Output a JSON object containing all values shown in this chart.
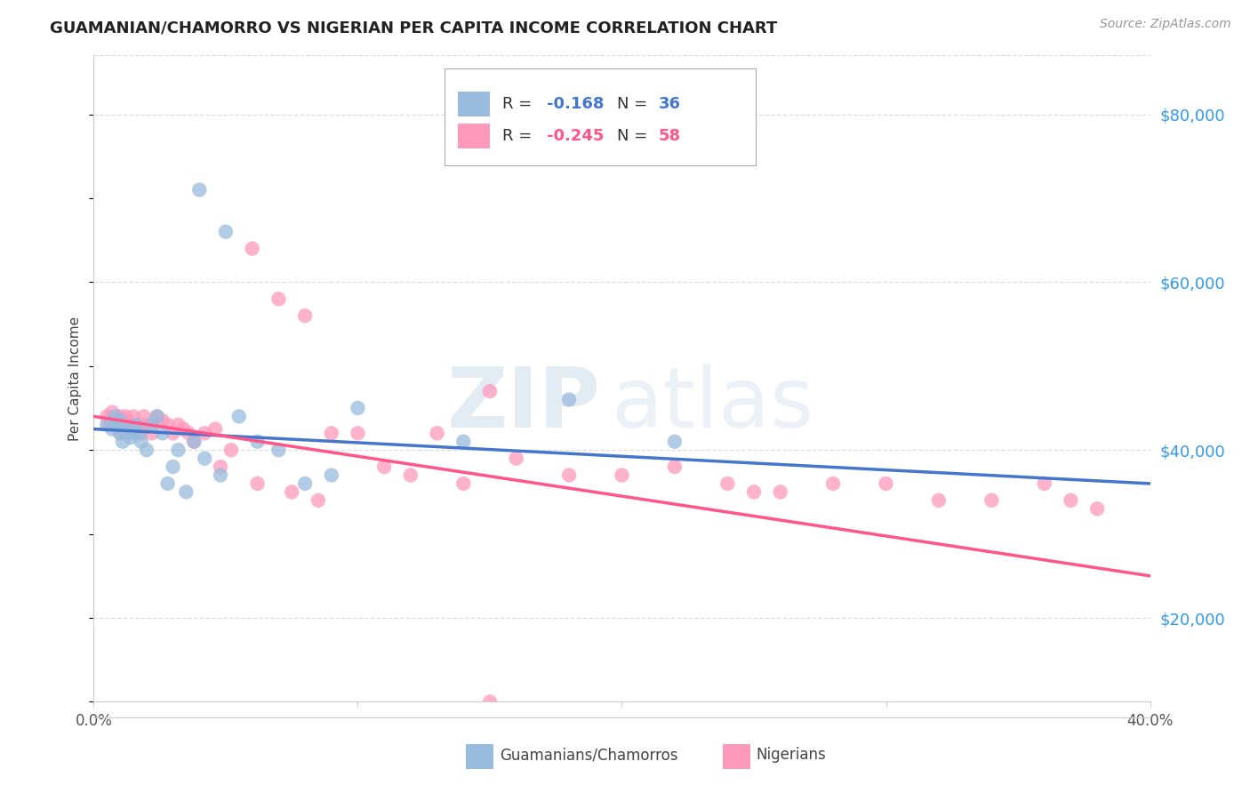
{
  "title": "GUAMANIAN/CHAMORRO VS NIGERIAN PER CAPITA INCOME CORRELATION CHART",
  "source": "Source: ZipAtlas.com",
  "ylabel": "Per Capita Income",
  "xlim": [
    0.0,
    0.4
  ],
  "ylim": [
    10000,
    87000
  ],
  "yticks": [
    20000,
    40000,
    60000,
    80000
  ],
  "ytick_labels": [
    "$20,000",
    "$40,000",
    "$60,000",
    "$80,000"
  ],
  "blue_color": "#99BBDD",
  "pink_color": "#FF99BB",
  "blue_line_color": "#4477CC",
  "pink_line_color": "#FF5588",
  "grid_color": "#DDDDDD",
  "blue_label": "Guamanians/Chamorros",
  "pink_label": "Nigerians",
  "title_color": "#222222",
  "right_label_color": "#3399EE",
  "legend_r1_val": "-0.168",
  "legend_n1_val": "36",
  "legend_r2_val": "-0.245",
  "legend_n2_val": "58",
  "blue_trend_x": [
    0.0,
    0.4
  ],
  "blue_trend_y": [
    42500,
    36000
  ],
  "pink_trend_x": [
    0.0,
    0.4
  ],
  "pink_trend_y": [
    44000,
    25000
  ],
  "blue_scatter_x": [
    0.005,
    0.007,
    0.008,
    0.009,
    0.01,
    0.01,
    0.011,
    0.012,
    0.013,
    0.014,
    0.015,
    0.016,
    0.017,
    0.018,
    0.02,
    0.022,
    0.024,
    0.026,
    0.028,
    0.03,
    0.032,
    0.035,
    0.038,
    0.042,
    0.048,
    0.055,
    0.062,
    0.07,
    0.08,
    0.09,
    0.1,
    0.14,
    0.18,
    0.22,
    0.04,
    0.05
  ],
  "blue_scatter_y": [
    43000,
    42500,
    44000,
    43000,
    42000,
    43500,
    41000,
    42000,
    42500,
    41500,
    42000,
    43000,
    42000,
    41000,
    40000,
    43000,
    44000,
    42000,
    36000,
    38000,
    40000,
    35000,
    41000,
    39000,
    37000,
    44000,
    41000,
    40000,
    36000,
    37000,
    45000,
    41000,
    46000,
    41000,
    71000,
    66000
  ],
  "pink_scatter_x": [
    0.005,
    0.006,
    0.007,
    0.008,
    0.009,
    0.01,
    0.01,
    0.011,
    0.012,
    0.013,
    0.014,
    0.015,
    0.016,
    0.017,
    0.018,
    0.019,
    0.02,
    0.022,
    0.024,
    0.026,
    0.028,
    0.03,
    0.032,
    0.034,
    0.036,
    0.038,
    0.042,
    0.046,
    0.052,
    0.06,
    0.07,
    0.08,
    0.09,
    0.1,
    0.11,
    0.12,
    0.13,
    0.14,
    0.15,
    0.16,
    0.18,
    0.2,
    0.22,
    0.24,
    0.26,
    0.28,
    0.3,
    0.32,
    0.34,
    0.36,
    0.38,
    0.048,
    0.062,
    0.075,
    0.085,
    0.15,
    0.25,
    0.37
  ],
  "pink_scatter_y": [
    44000,
    43000,
    44500,
    43000,
    43500,
    44000,
    42000,
    43000,
    44000,
    43500,
    42500,
    44000,
    43000,
    42500,
    42000,
    44000,
    43000,
    42000,
    44000,
    43500,
    43000,
    42000,
    43000,
    42500,
    42000,
    41000,
    42000,
    42500,
    40000,
    64000,
    58000,
    56000,
    42000,
    42000,
    38000,
    37000,
    42000,
    36000,
    47000,
    39000,
    37000,
    37000,
    38000,
    36000,
    35000,
    36000,
    36000,
    34000,
    34000,
    36000,
    33000,
    38000,
    36000,
    35000,
    34000,
    10000,
    35000,
    34000
  ]
}
